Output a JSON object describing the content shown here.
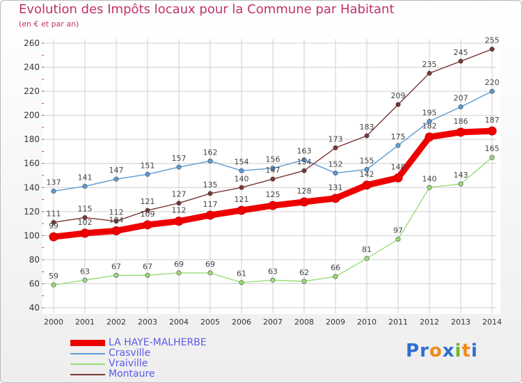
{
  "title": "Evolution des Impôts locaux pour la Commune par Habitant",
  "subtitle": "(en € et par an)",
  "brand": "Proxiti",
  "chart_data": {
    "type": "line",
    "title": "Evolution des Impôts locaux pour la Commune par Habitant",
    "ylabel": "(en € et par an)",
    "xlabel": "",
    "x": [
      "2000",
      "2001",
      "2002",
      "2003",
      "2004",
      "2005",
      "2006",
      "2007",
      "2008",
      "2009",
      "2010",
      "2011",
      "2012",
      "2013",
      "2014"
    ],
    "ylim": [
      40,
      260
    ],
    "yticks": [
      "40",
      "60",
      "80",
      "100",
      "120",
      "140",
      "160",
      "180",
      "200",
      "220",
      "240",
      "260"
    ],
    "grid": true,
    "legend_position": "bottom-left",
    "series": [
      {
        "name": "LA HAYE-MALHERBE",
        "color": "#ee0000",
        "values": [
          99,
          102,
          104,
          109,
          112,
          117,
          121,
          125,
          128,
          131,
          142,
          148,
          182,
          186,
          187
        ]
      },
      {
        "name": "Crasville",
        "color": "#5b9bd5",
        "values": [
          137,
          141,
          147,
          151,
          157,
          162,
          154,
          156,
          163,
          152,
          155,
          175,
          195,
          207,
          220
        ]
      },
      {
        "name": "Vraiville",
        "color": "#99dd77",
        "values": [
          59,
          63,
          67,
          67,
          69,
          69,
          61,
          63,
          62,
          66,
          81,
          97,
          140,
          143,
          165
        ]
      },
      {
        "name": "Montaure",
        "color": "#7a3535",
        "values": [
          111,
          115,
          112,
          121,
          127,
          135,
          140,
          147,
          154,
          173,
          183,
          209,
          235,
          245,
          255
        ]
      }
    ]
  }
}
